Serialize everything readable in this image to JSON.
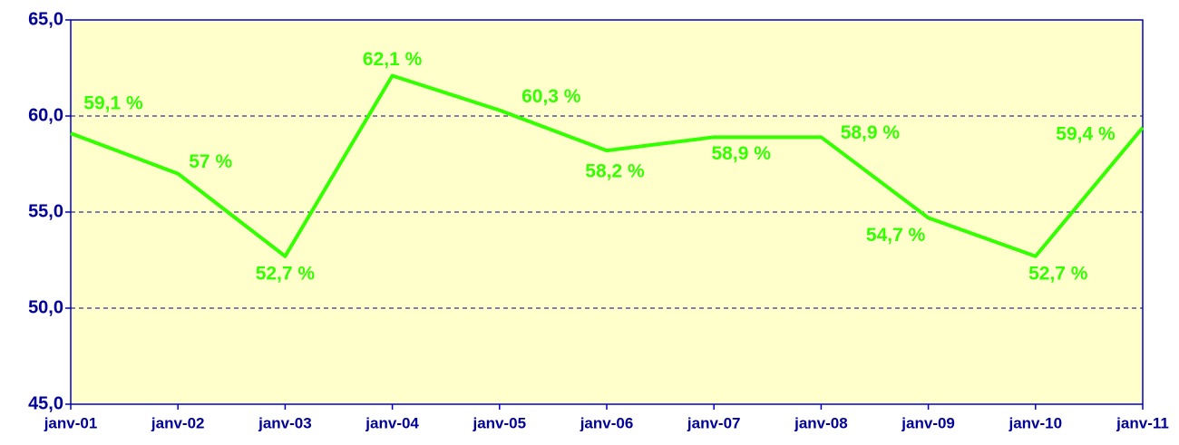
{
  "chart_data": {
    "type": "line",
    "categories": [
      "janv-01",
      "janv-02",
      "janv-03",
      "janv-04",
      "janv-05",
      "janv-06",
      "janv-07",
      "janv-08",
      "janv-09",
      "janv-10",
      "janv-11"
    ],
    "values": [
      59.1,
      57,
      52.7,
      62.1,
      60.3,
      58.2,
      58.9,
      58.9,
      54.7,
      52.7,
      59.4
    ],
    "value_labels": [
      "59,1 %",
      "57 %",
      "52,7 %",
      "62,1 %",
      "60,3 %",
      "58,2 %",
      "58,9 %",
      "58,9 %",
      "54,7 %",
      "52,7 %",
      "59,4 %"
    ],
    "color": "#33ff00",
    "ylim": [
      45,
      65
    ],
    "yticks": [
      {
        "value": 45,
        "label": "45,0"
      },
      {
        "value": 50,
        "label": "50,0"
      },
      {
        "value": 55,
        "label": "55,0"
      },
      {
        "value": 60,
        "label": "60,0"
      },
      {
        "value": 65,
        "label": "65,0"
      }
    ],
    "grid": true
  }
}
